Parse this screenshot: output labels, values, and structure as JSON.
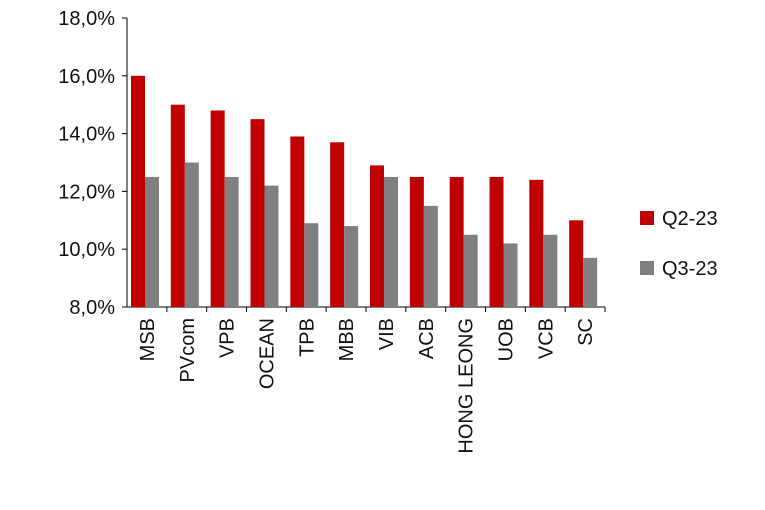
{
  "chart_data": {
    "type": "bar",
    "categories": [
      "MSB",
      "PVcom",
      "VPB",
      "OCEAN",
      "TPB",
      "MBB",
      "VIB",
      "ACB",
      "HONG LEONG",
      "UOB",
      "VCB",
      "SC"
    ],
    "series": [
      {
        "name": "Q2-23",
        "color": "#c00000",
        "values": [
          16.0,
          15.0,
          14.8,
          14.5,
          13.9,
          13.7,
          12.9,
          12.5,
          12.5,
          12.5,
          12.4,
          11.0
        ]
      },
      {
        "name": "Q3-23",
        "color": "#808080",
        "values": [
          12.5,
          13.0,
          12.5,
          12.2,
          10.9,
          10.8,
          12.5,
          11.5,
          10.5,
          10.2,
          10.5,
          9.7
        ]
      }
    ],
    "ylim": [
      8,
      18
    ],
    "yticks": [
      "8,0%",
      "10,0%",
      "12,0%",
      "14,0%",
      "16,0%",
      "18,0%"
    ],
    "ytick_values": [
      8,
      10,
      12,
      14,
      16,
      18
    ],
    "grid": false,
    "legend_position": "right"
  }
}
